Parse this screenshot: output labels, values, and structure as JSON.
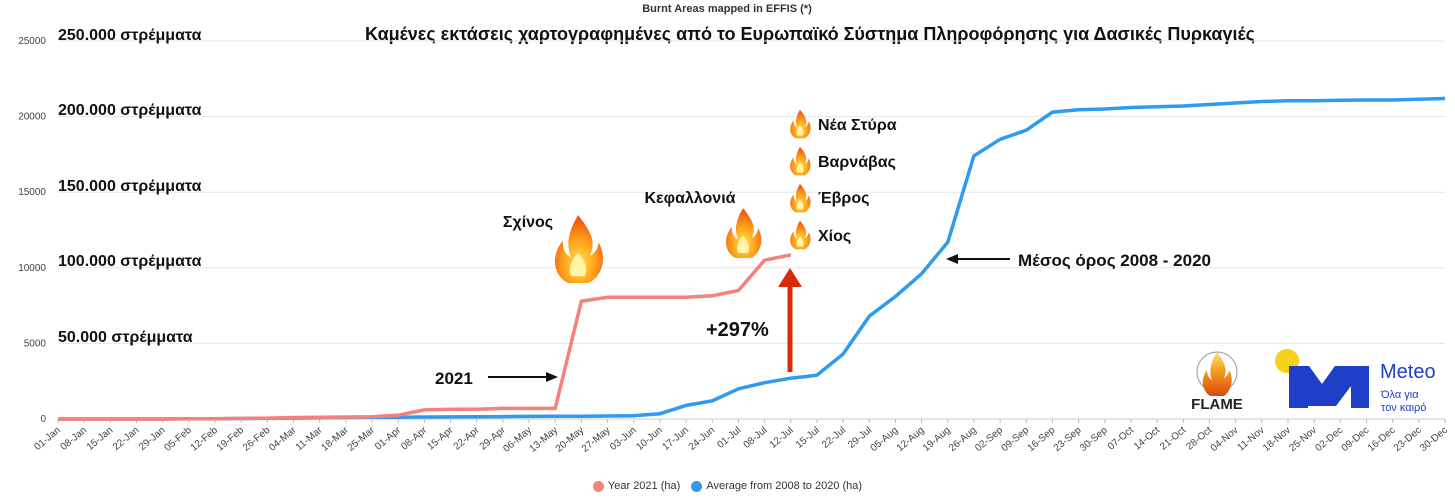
{
  "chart_data": {
    "type": "line",
    "title": "Burnt Areas mapped in EFFIS (*)",
    "subtitle": "Καμένες εκτάσεις χαρτογραφημένες από το Ευρωπαϊκό Σύστημα Πληροφόρησης για Δασικές Πυρκαγιές",
    "ylim": [
      0,
      25000
    ],
    "yticks": [
      0,
      5000,
      10000,
      15000,
      20000,
      25000
    ],
    "grid": true,
    "legend_position": "bottom",
    "categories": [
      "01-Jan",
      "08-Jan",
      "15-Jan",
      "22-Jan",
      "29-Jan",
      "05-Feb",
      "12-Feb",
      "19-Feb",
      "26-Feb",
      "04-Mar",
      "11-Mar",
      "18-Mar",
      "25-Mar",
      "01-Apr",
      "08-Apr",
      "15-Apr",
      "22-Apr",
      "29-Apr",
      "06-May",
      "13-May",
      "20-May",
      "27-May",
      "03-Jun",
      "10-Jun",
      "17-Jun",
      "24-Jun",
      "01-Jul",
      "08-Jul",
      "12-Jul",
      "15-Jul",
      "22-Jul",
      "29-Jul",
      "05-Aug",
      "12-Aug",
      "19-Aug",
      "26-Aug",
      "02-Sep",
      "09-Sep",
      "16-Sep",
      "23-Sep",
      "30-Sep",
      "07-Oct",
      "14-Oct",
      "21-Oct",
      "28-Oct",
      "04-Nov",
      "11-Nov",
      "18-Nov",
      "25-Nov",
      "02-Dec",
      "09-Dec",
      "16-Dec",
      "23-Dec",
      "30-Dec"
    ],
    "series": [
      {
        "name": "Year 2021 (ha)",
        "color": "#f4827b",
        "values": [
          0,
          0,
          0,
          0,
          0,
          10,
          20,
          40,
          60,
          100,
          120,
          130,
          150,
          250,
          600,
          650,
          650,
          700,
          700,
          700,
          7800,
          8050,
          8050,
          8050,
          8050,
          8150,
          8500,
          10500,
          10850,
          null,
          null,
          null,
          null,
          null,
          null,
          null,
          null,
          null,
          null,
          null,
          null,
          null,
          null,
          null,
          null,
          null,
          null,
          null,
          null,
          null,
          null,
          null,
          null,
          null
        ]
      },
      {
        "name": "Average from 2008 to 2020 (ha)",
        "color": "#2e9bef",
        "values": [
          0,
          0,
          0,
          0,
          0,
          10,
          20,
          30,
          40,
          60,
          80,
          100,
          110,
          120,
          130,
          140,
          150,
          160,
          170,
          180,
          180,
          200,
          220,
          350,
          900,
          1200,
          2000,
          2400,
          2700,
          2900,
          4300,
          6800,
          8100,
          9600,
          11700,
          17400,
          18500,
          19100,
          20300,
          20450,
          20500,
          20600,
          20650,
          20700,
          20800,
          20900,
          21000,
          21050,
          21050,
          21080,
          21100,
          21100,
          21150,
          21200
        ]
      }
    ],
    "annotations": {
      "level_labels": [
        "250.000 στρέμματα",
        "200.000 στρέμματα",
        "150.000 στρέμματα",
        "100.000 στρέμματα",
        "50.000 στρέμματα"
      ],
      "fire_labels": [
        "Σχίνος",
        "Κεφαλλονιά",
        "Νέα Στύρα",
        "Βαρνάβας",
        "Έβρος",
        "Χίος"
      ],
      "label_2021": "2021",
      "label_average": "Μέσος όρος 2008 - 2020",
      "increase": "+297%"
    },
    "arrow_color": "#d82b0b"
  },
  "logos": {
    "flame": "FLAME",
    "meteo_name": "Meteo",
    "meteo_tagline_1": "Όλα για",
    "meteo_tagline_2": "τον καιρό",
    "meteo_blue": "#1e3ec8",
    "meteo_yellow": "#f5d017"
  }
}
